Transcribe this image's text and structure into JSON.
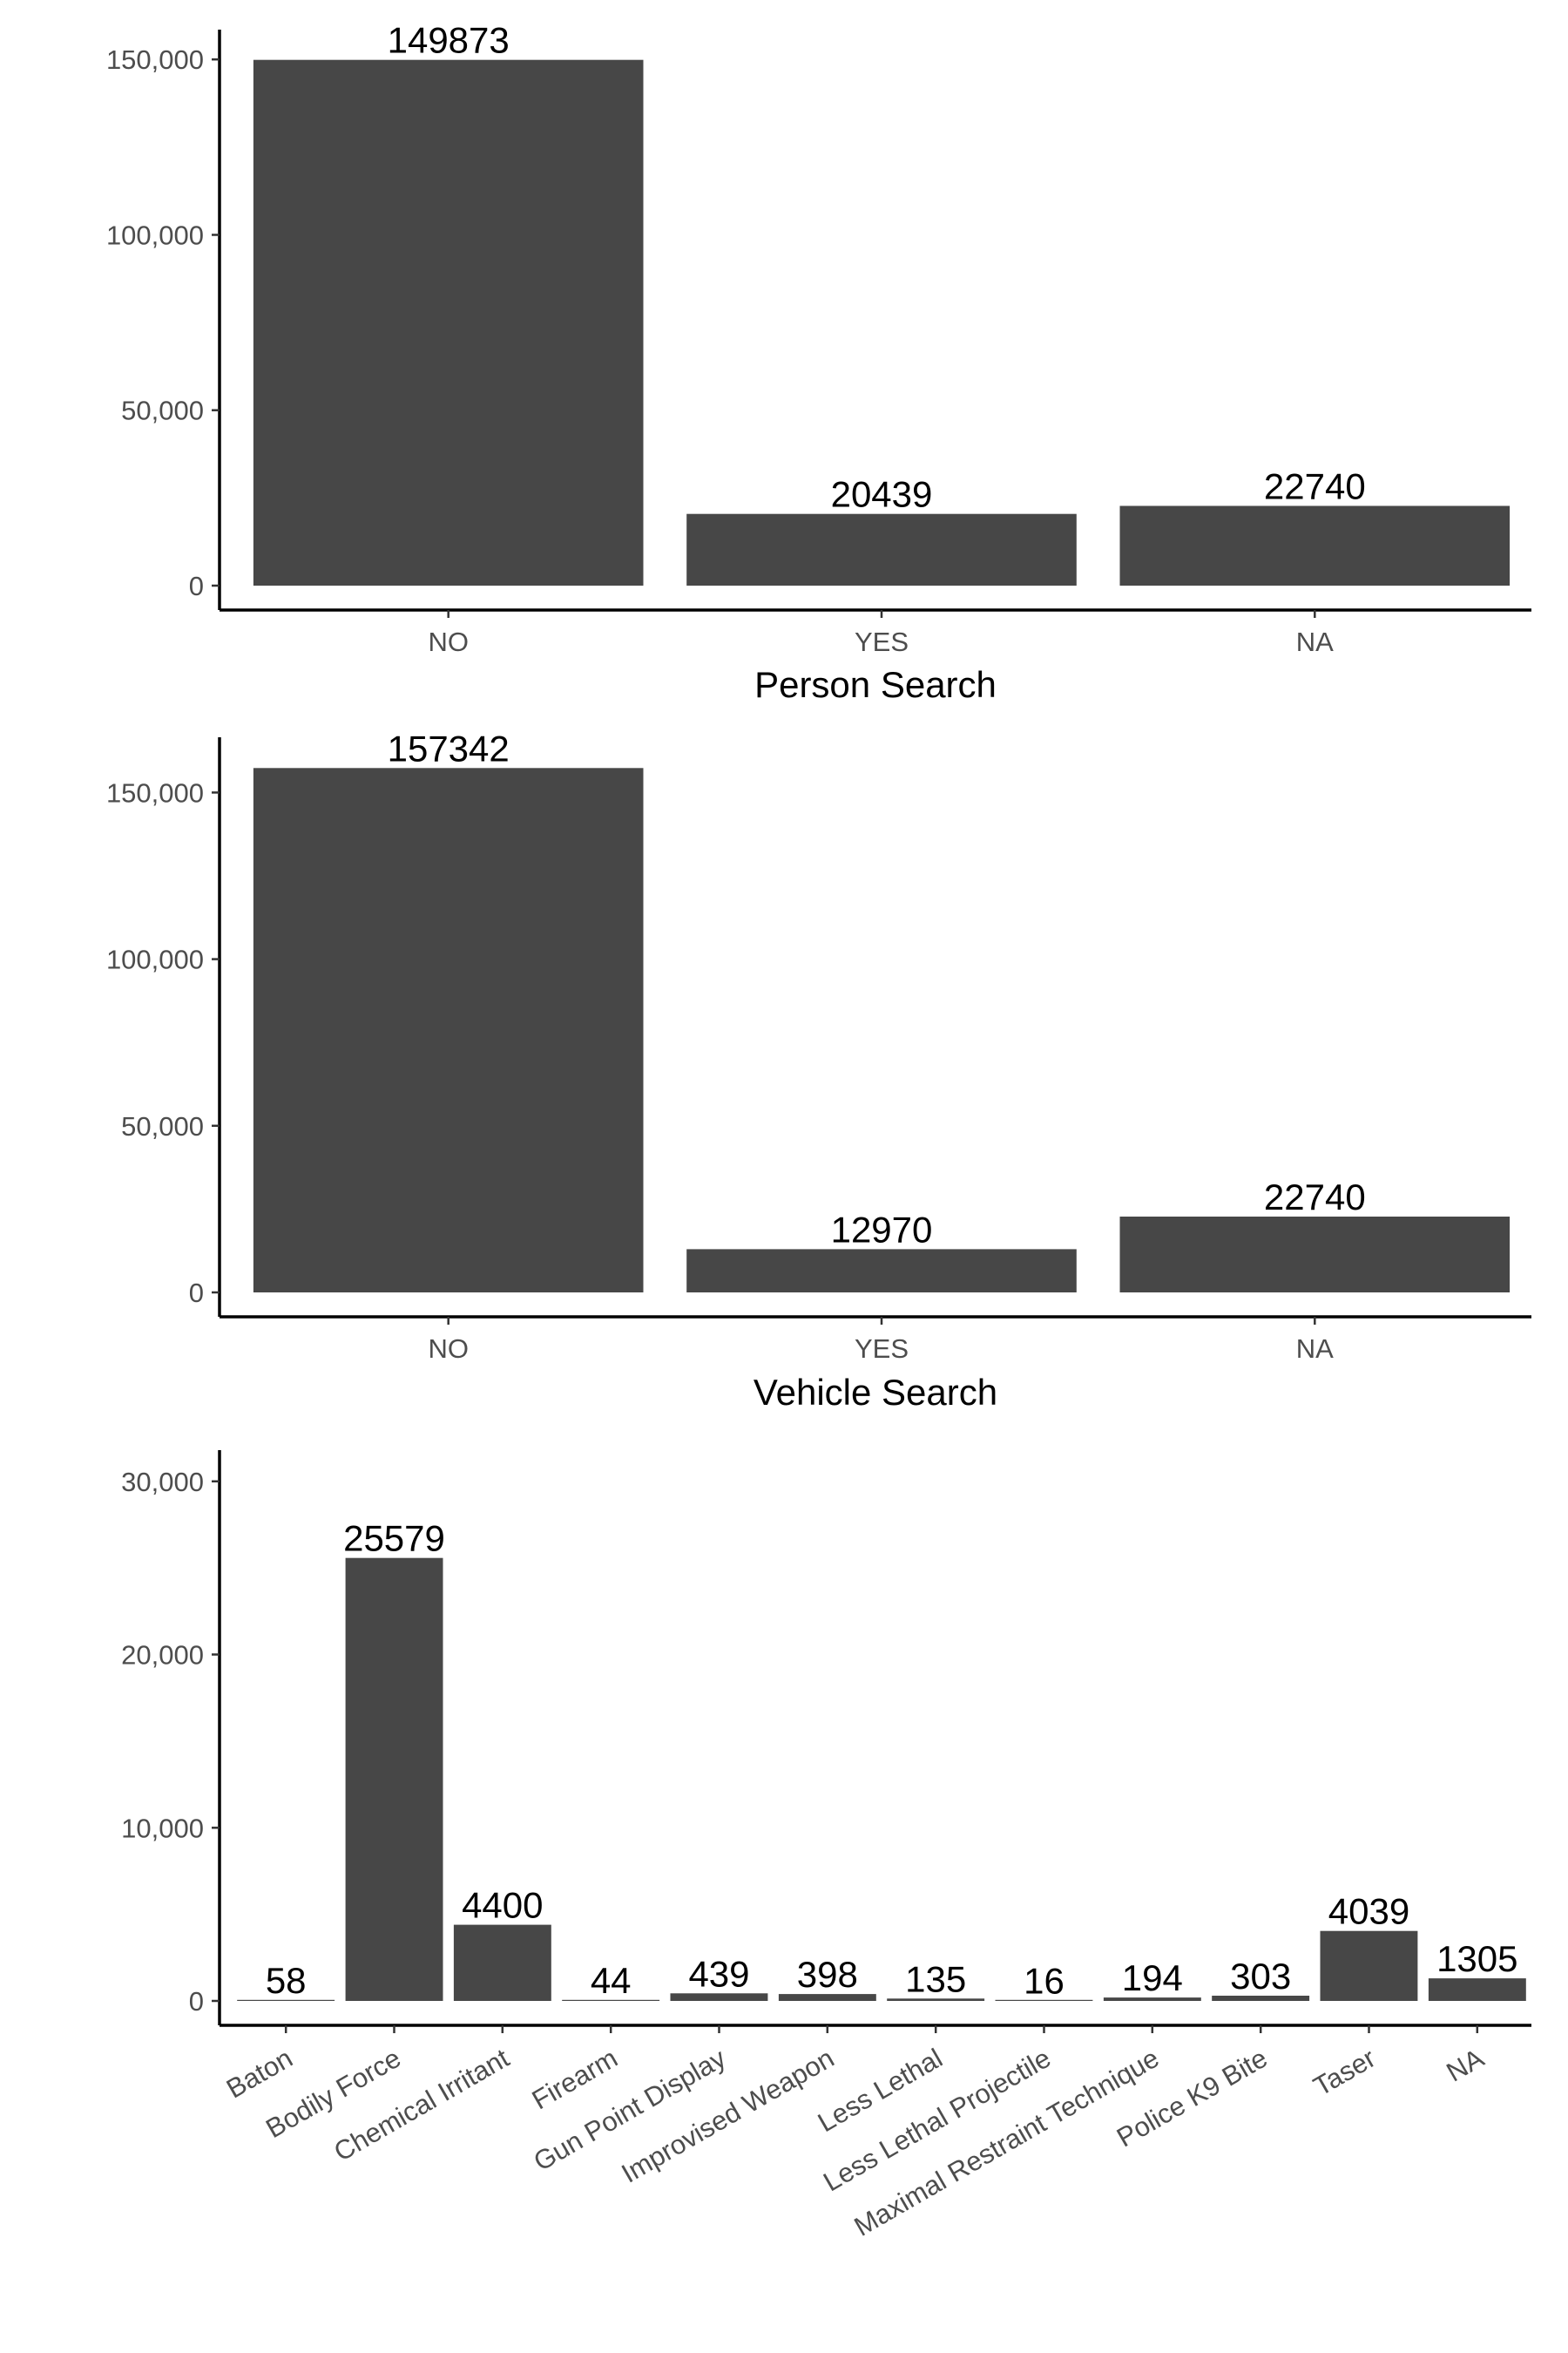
{
  "chart_data": [
    {
      "type": "bar",
      "xlabel": "Person Search",
      "ylabel": "",
      "categories": [
        "NO",
        "YES",
        "NA"
      ],
      "values": [
        149873,
        20439,
        22740
      ],
      "data_labels": [
        "149873",
        "20439",
        "22740"
      ],
      "yticks": [
        0,
        50000,
        100000,
        150000
      ],
      "ytick_labels": [
        "0",
        "50,000",
        "100,000",
        "150,000"
      ],
      "ylim": [
        0,
        157000
      ],
      "bar_color": "#474747",
      "grid": false,
      "legend": "none"
    },
    {
      "type": "bar",
      "xlabel": "Vehicle Search",
      "ylabel": "",
      "categories": [
        "NO",
        "YES",
        "NA"
      ],
      "values": [
        157342,
        12970,
        22740
      ],
      "data_labels": [
        "157342",
        "12970",
        "22740"
      ],
      "yticks": [
        0,
        50000,
        100000,
        150000
      ],
      "ytick_labels": [
        "0",
        "50,000",
        "100,000",
        "150,000"
      ],
      "ylim": [
        0,
        165000
      ],
      "bar_color": "#474747",
      "grid": false,
      "legend": "none"
    },
    {
      "type": "bar",
      "xlabel": "",
      "ylabel": "",
      "categories": [
        "Baton",
        "Bodily Force",
        "Chemical Irritant",
        "Firearm",
        "Gun Point Display",
        "Improvised Weapon",
        "Less Lethal",
        "Less Lethal Projectile",
        "Maximal Restraint Technique",
        "Police K9 Bite",
        "Taser",
        "NA"
      ],
      "values": [
        58,
        25579,
        4400,
        44,
        439,
        398,
        135,
        16,
        194,
        303,
        4039,
        1305
      ],
      "data_labels": [
        "58",
        "25579",
        "4400",
        "44",
        "439",
        "398",
        "135",
        "16",
        "194",
        "303",
        "4039",
        "1305"
      ],
      "yticks": [
        0,
        10000,
        20000,
        30000
      ],
      "ytick_labels": [
        "0",
        "10,000",
        "20,000",
        "30,000"
      ],
      "ylim": [
        0,
        31500
      ],
      "tick_label_rotation": -30,
      "bar_color": "#474747",
      "grid": false,
      "legend": "none"
    }
  ]
}
